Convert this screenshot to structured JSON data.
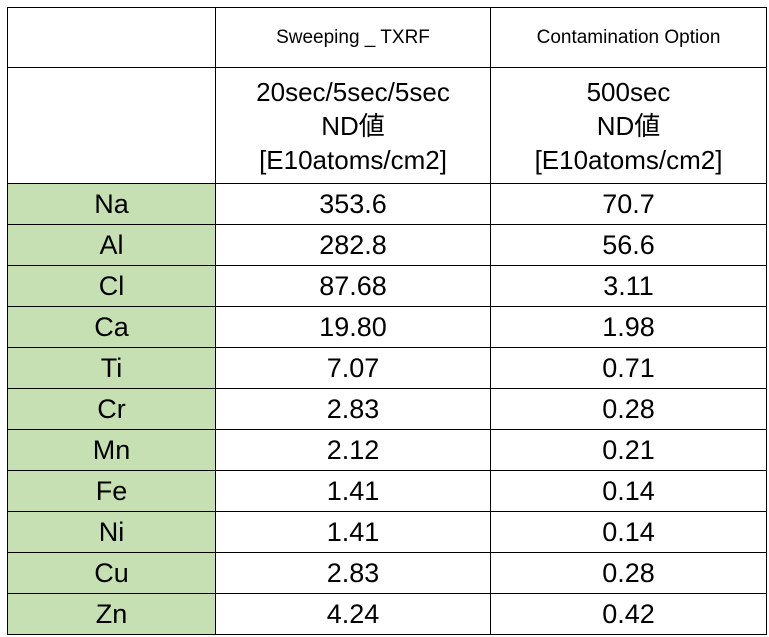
{
  "table": {
    "header": {
      "corner": "",
      "columns": [
        "Sweeping _ TXRF",
        "Contamination Option"
      ]
    },
    "subheader": {
      "corner": "",
      "columns": [
        {
          "lines": [
            "20sec/5sec/5sec",
            "ND値",
            "[E10atoms/cm2]"
          ]
        },
        {
          "lines": [
            "500sec",
            "ND値",
            "[E10atoms/cm2]"
          ]
        }
      ]
    },
    "rows": [
      {
        "element": "Na",
        "sweeping": "353.6",
        "contamination": "70.7"
      },
      {
        "element": "Al",
        "sweeping": "282.8",
        "contamination": "56.6"
      },
      {
        "element": "Cl",
        "sweeping": "87.68",
        "contamination": "3.11"
      },
      {
        "element": "Ca",
        "sweeping": "19.80",
        "contamination": "1.98"
      },
      {
        "element": "Ti",
        "sweeping": "7.07",
        "contamination": "0.71"
      },
      {
        "element": "Cr",
        "sweeping": "2.83",
        "contamination": "0.28"
      },
      {
        "element": "Mn",
        "sweeping": "2.12",
        "contamination": "0.21"
      },
      {
        "element": "Fe",
        "sweeping": "1.41",
        "contamination": "0.14"
      },
      {
        "element": "Ni",
        "sweeping": "1.41",
        "contamination": "0.14"
      },
      {
        "element": "Cu",
        "sweeping": "2.83",
        "contamination": "0.28"
      },
      {
        "element": "Zn",
        "sweeping": "4.24",
        "contamination": "0.42"
      }
    ],
    "colors": {
      "element_fill": "#c6e0b4",
      "border": "#000000"
    }
  }
}
